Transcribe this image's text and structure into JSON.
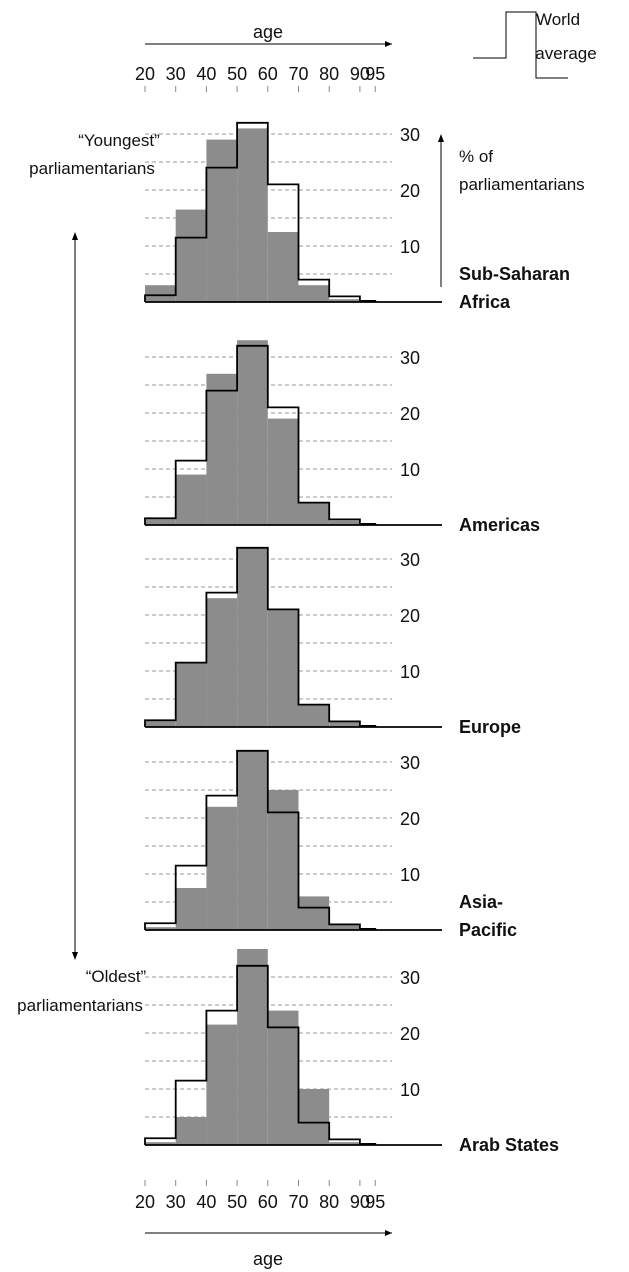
{
  "figure": {
    "age_label_top": "age",
    "age_label_bottom": "age",
    "legend_label": "World average",
    "axis_note": "% of parliamentarians",
    "youngest_label": "“Youngest” parliamentarians",
    "oldest_label": "“Oldest” parliamentarians"
  },
  "chart_data": {
    "type": "bar",
    "xlabel": "age",
    "ylabel": "% of parliamentarians",
    "x_ticks": [
      "20",
      "30",
      "40",
      "50",
      "60",
      "70",
      "80",
      "90",
      "95"
    ],
    "y_ticks": [
      "10",
      "20",
      "30"
    ],
    "ylim": [
      0,
      33
    ],
    "bins": [
      "20-30",
      "30-40",
      "40-50",
      "50-60",
      "60-70",
      "70-80",
      "80-90",
      "90-95"
    ],
    "world_average": [
      1.2,
      11.5,
      24,
      32,
      21,
      4,
      1,
      0.2
    ],
    "panels": [
      {
        "name": "Sub-Saharan Africa",
        "values": [
          3,
          16.5,
          29,
          31,
          12.5,
          3,
          0.5,
          0
        ]
      },
      {
        "name": "Americas",
        "values": [
          1.2,
          9,
          27,
          33,
          19,
          4,
          0.8,
          0
        ]
      },
      {
        "name": "Europe",
        "values": [
          1.2,
          11.5,
          23,
          32,
          21,
          4,
          1,
          0
        ]
      },
      {
        "name": "Asia-Pacific",
        "values": [
          0.5,
          7.5,
          22,
          32,
          25,
          6,
          1,
          0.2
        ]
      },
      {
        "name": "Arab States",
        "values": [
          0.5,
          5,
          21.5,
          35,
          24,
          10,
          0.5,
          0
        ]
      }
    ],
    "grid": true,
    "legend": "top-right"
  }
}
